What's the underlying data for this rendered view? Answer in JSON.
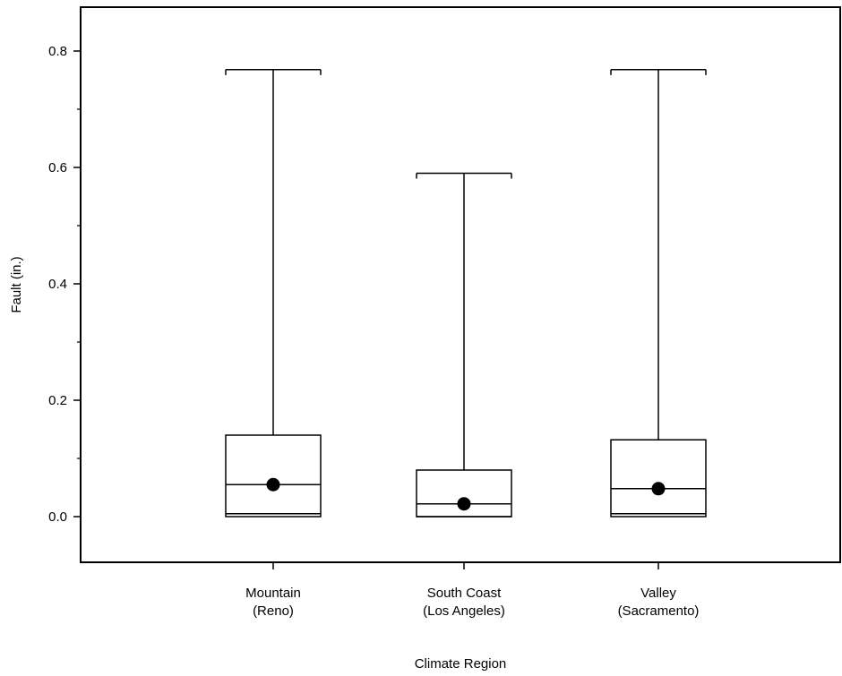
{
  "chart_data": {
    "type": "box",
    "xlabel": "Climate Region",
    "ylabel": "Fault (in.)",
    "ylim": [
      -0.08,
      0.88
    ],
    "yticks": [
      0.0,
      0.2,
      0.4,
      0.6,
      0.8
    ],
    "ytick_labels": [
      "0.0",
      "0.2",
      "0.4",
      "0.6",
      "0.8"
    ],
    "grid": false,
    "legend": "none",
    "categories": [
      {
        "line1": "Mountain",
        "line2": "(Reno)"
      },
      {
        "line1": "South Coast",
        "line2": "(Los Angeles)"
      },
      {
        "line1": "Valley",
        "line2": "(Sacramento)"
      }
    ],
    "series": [
      {
        "min": 0.0,
        "q1": 0.005,
        "median": 0.055,
        "q3": 0.14,
        "max": 0.768,
        "mean": 0.055
      },
      {
        "min": 0.0,
        "q1": 0.0,
        "median": 0.022,
        "q3": 0.08,
        "max": 0.59,
        "mean": 0.022
      },
      {
        "min": 0.0,
        "q1": 0.005,
        "median": 0.048,
        "q3": 0.132,
        "max": 0.768,
        "mean": 0.048
      }
    ]
  }
}
